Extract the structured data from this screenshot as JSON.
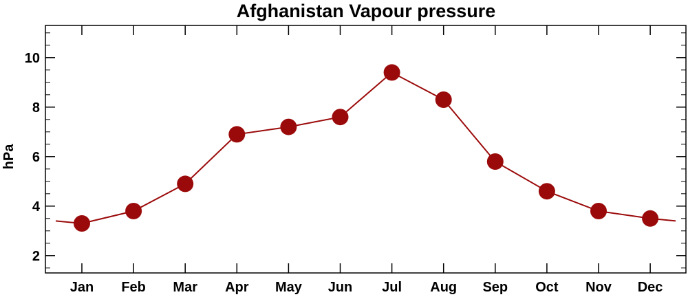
{
  "chart_data": {
    "type": "line",
    "title": "Afghanistan Vapour pressure",
    "xlabel": "",
    "ylabel": "hPa",
    "categories": [
      "Jan",
      "Feb",
      "Mar",
      "Apr",
      "May",
      "Jun",
      "Jul",
      "Aug",
      "Sep",
      "Oct",
      "Nov",
      "Dec"
    ],
    "values": [
      3.3,
      3.8,
      4.9,
      6.9,
      7.2,
      7.6,
      9.4,
      8.3,
      5.8,
      4.6,
      3.8,
      3.5
    ],
    "edge_values": [
      3.4,
      3.4
    ],
    "ylim": [
      1.3,
      11.3
    ],
    "yticks": [
      2,
      4,
      6,
      8,
      10
    ],
    "ytick_labels": [
      "2",
      "4",
      "6",
      "8",
      "10"
    ],
    "grid": false,
    "legend": "none",
    "colors": {
      "line": "#9b0a0a",
      "marker": "#9b0a0a",
      "axis": "#000000"
    }
  }
}
